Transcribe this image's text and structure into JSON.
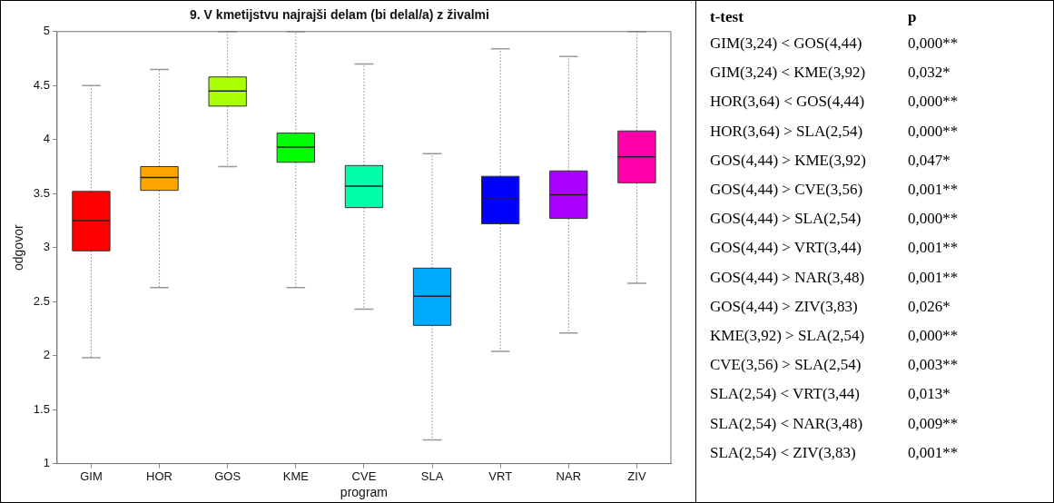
{
  "chart_data": [
    {
      "type": "box",
      "title": "9. V kmetijstvu najrajši delam (bi delal/a) z živalmi",
      "xlabel": "program",
      "ylabel": "odgovor",
      "categories": [
        "GIM",
        "HOR",
        "GOS",
        "KME",
        "CVE",
        "SLA",
        "VRT",
        "NAR",
        "ZIV"
      ],
      "colors": [
        "#ff0000",
        "#ffa500",
        "#aaff00",
        "#00ff00",
        "#00ffaa",
        "#00aaff",
        "#0000ff",
        "#aa00ff",
        "#ff00aa"
      ],
      "boxes": [
        {
          "low": 1.98,
          "q1": 2.97,
          "median": 3.25,
          "q3": 3.52,
          "high": 4.5
        },
        {
          "low": 2.63,
          "q1": 3.53,
          "median": 3.65,
          "q3": 3.75,
          "high": 4.65
        },
        {
          "low": 3.75,
          "q1": 4.31,
          "median": 4.45,
          "q3": 4.58,
          "high": 5
        },
        {
          "low": 2.63,
          "q1": 3.79,
          "median": 3.93,
          "q3": 4.06,
          "high": 5
        },
        {
          "low": 2.43,
          "q1": 3.37,
          "median": 3.57,
          "q3": 3.76,
          "high": 4.7
        },
        {
          "low": 1.22,
          "q1": 2.28,
          "median": 2.55,
          "q3": 2.81,
          "high": 3.87
        },
        {
          "low": 2.04,
          "q1": 3.22,
          "median": 3.45,
          "q3": 3.66,
          "high": 4.84
        },
        {
          "low": 2.21,
          "q1": 3.27,
          "median": 3.49,
          "q3": 3.71,
          "high": 4.77
        },
        {
          "low": 2.67,
          "q1": 3.6,
          "median": 3.84,
          "q3": 4.08,
          "high": 5
        }
      ],
      "ylim": [
        1,
        5
      ],
      "yticks": [
        1,
        1.5,
        2,
        2.5,
        3,
        3.5,
        4,
        4.5,
        5
      ],
      "grid": false,
      "legend": false
    },
    {
      "type": "other",
      "categories": [
        "t-test",
        "p"
      ],
      "cell_labels": [
        [
          "GIM(3,24) < GOS(4,44)",
          "0,000**"
        ],
        [
          "GIM(3,24) < KME(3,92)",
          "0,032*"
        ],
        [
          "HOR(3,64) < GOS(4,44)",
          "0,000**"
        ],
        [
          "HOR(3,64) > SLA(2,54)",
          "0,000**"
        ],
        [
          "GOS(4,44) > KME(3,92)",
          "0,047*"
        ],
        [
          "GOS(4,44) > CVE(3,56)",
          "0,001**"
        ],
        [
          "GOS(4,44) > SLA(2,54)",
          "0,000**"
        ],
        [
          "GOS(4,44) > VRT(3,44)",
          "0,001**"
        ],
        [
          "GOS(4,44) > NAR(3,48)",
          "0,001**"
        ],
        [
          "GOS(4,44) > ZIV(3,83)",
          "0,026*"
        ],
        [
          "KME(3,92) > SLA(2,54)",
          "0,000**"
        ],
        [
          "CVE(3,56) > SLA(2,54)",
          "0,003**"
        ],
        [
          "SLA(2,54) < VRT(3,44)",
          "0,013*"
        ],
        [
          "SLA(2,54) < NAR(3,48)",
          "0,009**"
        ],
        [
          "SLA(2,54) < ZIV(3,83)",
          "0,001**"
        ]
      ]
    }
  ]
}
